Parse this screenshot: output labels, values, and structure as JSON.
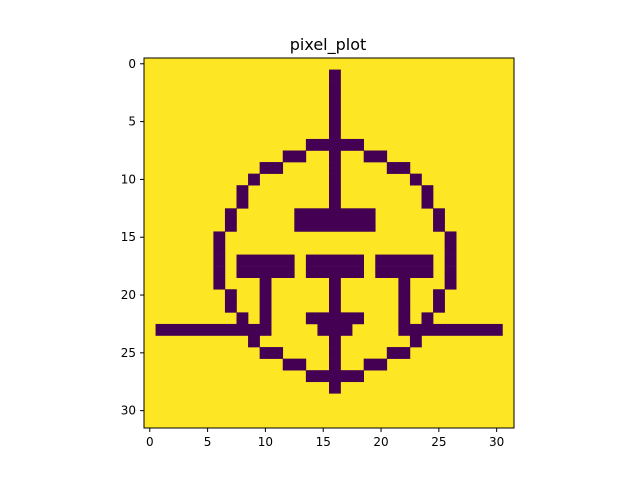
{
  "chart_data": {
    "type": "heatmap",
    "title": "pixel_plot",
    "xlabel": "",
    "ylabel": "",
    "xlim": [
      -0.5,
      31.5
    ],
    "ylim": [
      31.5,
      -0.5
    ],
    "xticks": [
      0,
      5,
      10,
      15,
      20,
      25,
      30
    ],
    "yticks": [
      0,
      5,
      10,
      15,
      20,
      25,
      30
    ],
    "grid": false,
    "colormap": "viridis",
    "colors": {
      "low": "#440154",
      "high": "#fde725"
    },
    "rows": 32,
    "cols": 32,
    "low_cells": [
      [
        1,
        16,
        16
      ],
      [
        2,
        16,
        16
      ],
      [
        3,
        16,
        16
      ],
      [
        4,
        16,
        16
      ],
      [
        5,
        16,
        16
      ],
      [
        6,
        16,
        16
      ],
      [
        7,
        14,
        18
      ],
      [
        8,
        12,
        13
      ],
      [
        8,
        16,
        16
      ],
      [
        8,
        19,
        20
      ],
      [
        9,
        10,
        11
      ],
      [
        9,
        16,
        16
      ],
      [
        9,
        21,
        22
      ],
      [
        10,
        9,
        9
      ],
      [
        10,
        16,
        16
      ],
      [
        10,
        23,
        23
      ],
      [
        11,
        8,
        8
      ],
      [
        11,
        16,
        16
      ],
      [
        11,
        24,
        24
      ],
      [
        12,
        8,
        8
      ],
      [
        12,
        16,
        16
      ],
      [
        12,
        24,
        24
      ],
      [
        13,
        7,
        7
      ],
      [
        13,
        13,
        19
      ],
      [
        13,
        25,
        25
      ],
      [
        14,
        7,
        7
      ],
      [
        14,
        13,
        19
      ],
      [
        14,
        25,
        25
      ],
      [
        15,
        6,
        6
      ],
      [
        15,
        26,
        26
      ],
      [
        16,
        6,
        6
      ],
      [
        16,
        26,
        26
      ],
      [
        17,
        6,
        6
      ],
      [
        17,
        8,
        12
      ],
      [
        17,
        14,
        18
      ],
      [
        17,
        20,
        24
      ],
      [
        17,
        26,
        26
      ],
      [
        18,
        6,
        6
      ],
      [
        18,
        8,
        12
      ],
      [
        18,
        14,
        18
      ],
      [
        18,
        20,
        24
      ],
      [
        18,
        26,
        26
      ],
      [
        19,
        6,
        6
      ],
      [
        19,
        10,
        10
      ],
      [
        19,
        16,
        16
      ],
      [
        19,
        22,
        22
      ],
      [
        19,
        26,
        26
      ],
      [
        20,
        7,
        7
      ],
      [
        20,
        10,
        10
      ],
      [
        20,
        16,
        16
      ],
      [
        20,
        22,
        22
      ],
      [
        20,
        25,
        25
      ],
      [
        21,
        7,
        7
      ],
      [
        21,
        10,
        10
      ],
      [
        21,
        16,
        16
      ],
      [
        21,
        22,
        22
      ],
      [
        21,
        25,
        25
      ],
      [
        22,
        8,
        8
      ],
      [
        22,
        10,
        10
      ],
      [
        22,
        14,
        18
      ],
      [
        22,
        22,
        22
      ],
      [
        22,
        24,
        24
      ],
      [
        23,
        1,
        10
      ],
      [
        23,
        15,
        17
      ],
      [
        23,
        22,
        30
      ],
      [
        24,
        9,
        9
      ],
      [
        24,
        16,
        16
      ],
      [
        24,
        23,
        23
      ],
      [
        25,
        10,
        11
      ],
      [
        25,
        16,
        16
      ],
      [
        25,
        21,
        22
      ],
      [
        26,
        12,
        13
      ],
      [
        26,
        16,
        16
      ],
      [
        26,
        19,
        20
      ],
      [
        27,
        14,
        18
      ],
      [
        28,
        16,
        16
      ]
    ]
  }
}
